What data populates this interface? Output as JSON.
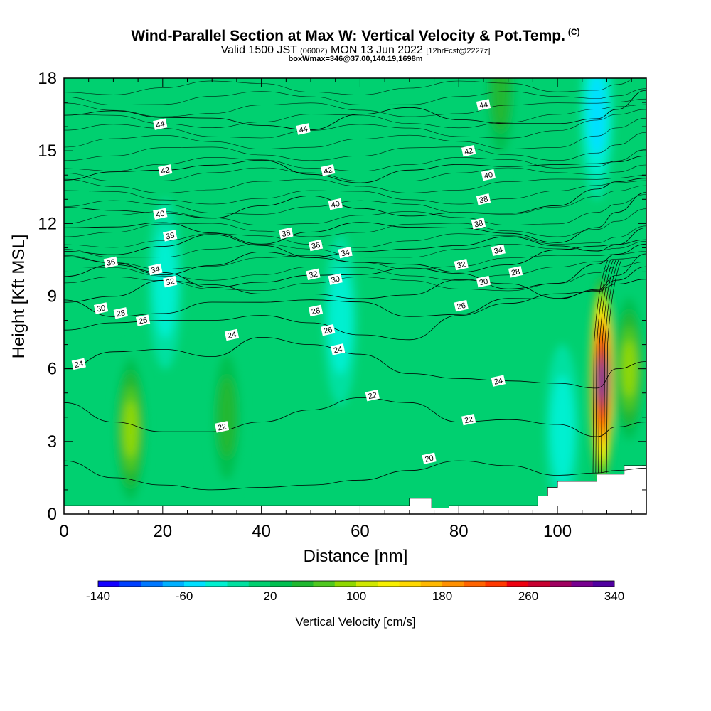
{
  "header": {
    "title": "Wind-Parallel Section at Max W: Vertical Velocity & Pot.Temp.",
    "copyright": "(C)",
    "valid_prefix": "Valid 1500 JST",
    "valid_utc": "(0600Z)",
    "valid_date": "MON 13 Jun 2022",
    "forecast": "[12hrFcst@2227z]",
    "box_info": "boxWmax=346@37.00,140.19,1698m"
  },
  "chart_data": {
    "type": "heatmap",
    "title": "Wind-Parallel Section at Max W: Vertical Velocity & Pot.Temp.",
    "xlabel": "Distance [nm]",
    "ylabel": "Height [Kft MSL]",
    "xlim": [
      0,
      118
    ],
    "ylim": [
      0,
      18
    ],
    "x_ticks": [
      0,
      20,
      40,
      60,
      80,
      100
    ],
    "y_ticks": [
      0,
      3,
      6,
      9,
      12,
      15,
      18
    ],
    "colorbar": {
      "title": "Vertical Velocity [cm/s]",
      "labels": [
        -140,
        -60,
        20,
        100,
        180,
        260,
        340
      ],
      "bounds": [
        -140,
        340
      ],
      "step": 20,
      "colors": [
        "#1400ff",
        "#0040ff",
        "#0078ff",
        "#00b0ff",
        "#00e0ff",
        "#00f0d0",
        "#00e0a0",
        "#00d070",
        "#00c050",
        "#20b830",
        "#50c820",
        "#90d800",
        "#d0e800",
        "#f8f000",
        "#ffd800",
        "#ffb800",
        "#ff9000",
        "#ff6400",
        "#ff3800",
        "#ee0010",
        "#c80030",
        "#a00060",
        "#780090",
        "#5000a0"
      ]
    },
    "theta_contours_K": [
      20,
      22,
      24,
      26,
      28,
      30,
      32,
      34,
      36,
      38,
      40,
      42,
      44
    ],
    "theta_labels": [
      {
        "x": 19.5,
        "y": 16.1,
        "v": "44"
      },
      {
        "x": 48.5,
        "y": 15.9,
        "v": "44"
      },
      {
        "x": 85,
        "y": 16.9,
        "v": "44"
      },
      {
        "x": 20.5,
        "y": 14.2,
        "v": "42"
      },
      {
        "x": 53.5,
        "y": 14.2,
        "v": "42"
      },
      {
        "x": 82,
        "y": 15.0,
        "v": "42"
      },
      {
        "x": 19.5,
        "y": 12.4,
        "v": "40"
      },
      {
        "x": 55,
        "y": 12.8,
        "v": "40"
      },
      {
        "x": 86,
        "y": 14.0,
        "v": "40"
      },
      {
        "x": 21.5,
        "y": 11.5,
        "v": "38"
      },
      {
        "x": 45,
        "y": 11.6,
        "v": "38"
      },
      {
        "x": 85,
        "y": 13.0,
        "v": "38"
      },
      {
        "x": 84,
        "y": 12.0,
        "v": "38"
      },
      {
        "x": 9.5,
        "y": 10.4,
        "v": "36"
      },
      {
        "x": 51,
        "y": 11.1,
        "v": "36"
      },
      {
        "x": 18.5,
        "y": 10.1,
        "v": "34"
      },
      {
        "x": 57,
        "y": 10.8,
        "v": "34"
      },
      {
        "x": 88,
        "y": 10.9,
        "v": "34"
      },
      {
        "x": 21.5,
        "y": 9.6,
        "v": "32"
      },
      {
        "x": 50.5,
        "y": 9.9,
        "v": "32"
      },
      {
        "x": 80.5,
        "y": 10.3,
        "v": "32"
      },
      {
        "x": 7.5,
        "y": 8.5,
        "v": "30"
      },
      {
        "x": 55,
        "y": 9.7,
        "v": "30"
      },
      {
        "x": 85,
        "y": 9.6,
        "v": "30"
      },
      {
        "x": 11.5,
        "y": 8.3,
        "v": "28"
      },
      {
        "x": 51,
        "y": 8.4,
        "v": "28"
      },
      {
        "x": 91.5,
        "y": 10.0,
        "v": "28"
      },
      {
        "x": 16,
        "y": 8.0,
        "v": "26"
      },
      {
        "x": 53.5,
        "y": 7.6,
        "v": "26"
      },
      {
        "x": 80.5,
        "y": 8.6,
        "v": "26"
      },
      {
        "x": 3,
        "y": 6.2,
        "v": "24"
      },
      {
        "x": 34,
        "y": 7.4,
        "v": "24"
      },
      {
        "x": 55.5,
        "y": 6.8,
        "v": "24"
      },
      {
        "x": 88,
        "y": 5.5,
        "v": "24"
      },
      {
        "x": 32,
        "y": 3.6,
        "v": "22"
      },
      {
        "x": 62.5,
        "y": 4.9,
        "v": "22"
      },
      {
        "x": 82,
        "y": 3.9,
        "v": "22"
      },
      {
        "x": 74,
        "y": 2.3,
        "v": "20"
      }
    ],
    "w_maxima": [
      {
        "x": 109,
        "y": 5.5,
        "w": 340
      },
      {
        "x": 13.5,
        "y": 3.5,
        "w": 100
      },
      {
        "x": 33,
        "y": 4.0,
        "w": 60
      },
      {
        "x": 88.5,
        "y": 17.5,
        "w": 60
      },
      {
        "x": 114.5,
        "y": 6.0,
        "w": 110
      }
    ],
    "w_minima": [
      {
        "x": 108,
        "y": 16.5,
        "w": -60
      },
      {
        "x": 56,
        "y": 8.0,
        "w": -40
      },
      {
        "x": 20.5,
        "y": 9.5,
        "w": -40
      },
      {
        "x": 101,
        "y": 3.5,
        "w": -40
      }
    ],
    "terrain_nm_kft": [
      [
        0,
        0.35
      ],
      [
        70,
        0.35
      ],
      [
        70,
        0.65
      ],
      [
        74.5,
        0.65
      ],
      [
        74.5,
        0.25
      ],
      [
        78,
        0.25
      ],
      [
        78,
        0.35
      ],
      [
        96,
        0.35
      ],
      [
        96,
        0.75
      ],
      [
        98,
        0.75
      ],
      [
        98,
        1.1
      ],
      [
        100,
        1.1
      ],
      [
        100,
        1.35
      ],
      [
        108,
        1.35
      ],
      [
        108,
        1.65
      ],
      [
        113.5,
        1.65
      ],
      [
        113.5,
        2.0
      ],
      [
        118,
        2.0
      ]
    ]
  }
}
